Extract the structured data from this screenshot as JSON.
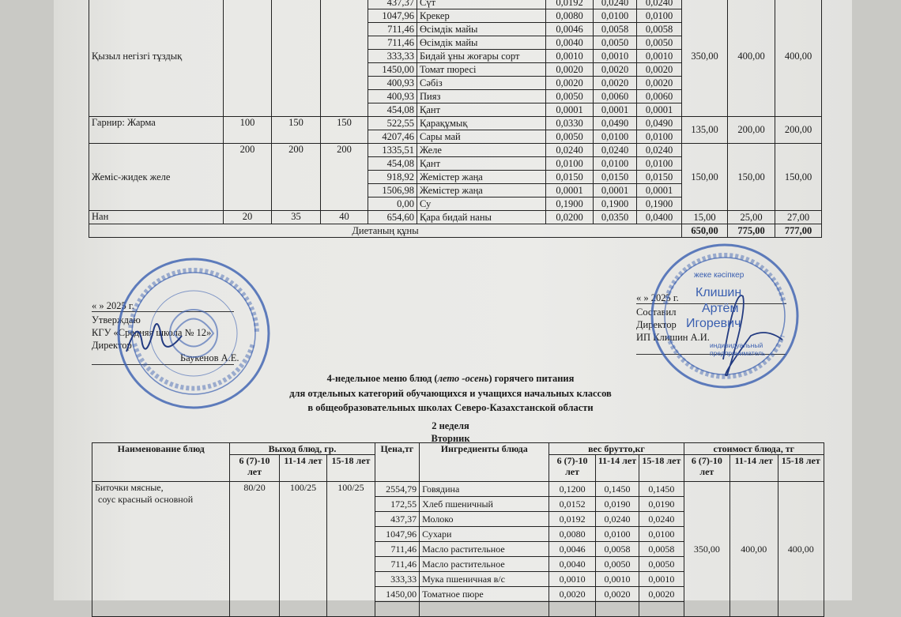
{
  "top_table": {
    "groups": [
      {
        "name": "Қызыл негізгі тұздық",
        "yields": [
          "",
          "",
          ""
        ],
        "costs": [
          "350,00",
          "400,00",
          "400,00"
        ],
        "items": [
          {
            "price": "437,37",
            "ingredient": "Сүт",
            "weights": [
              "0,0192",
              "0,0240",
              "0,0240"
            ]
          },
          {
            "price": "1047,96",
            "ingredient": "Крекер",
            "weights": [
              "0,0080",
              "0,0100",
              "0,0100"
            ]
          },
          {
            "price": "711,46",
            "ingredient": "Өсімдік майы",
            "weights": [
              "0,0046",
              "0,0058",
              "0,0058"
            ]
          },
          {
            "price": "711,46",
            "ingredient": "Өсімдік майы",
            "weights": [
              "0,0040",
              "0,0050",
              "0,0050"
            ]
          },
          {
            "price": "333,33",
            "ingredient": "Бидай ұны жоғары сорт",
            "weights": [
              "0,0010",
              "0,0010",
              "0,0010"
            ]
          },
          {
            "price": "1450,00",
            "ingredient": "Томат пюресі",
            "weights": [
              "0,0020",
              "0,0020",
              "0,0020"
            ]
          },
          {
            "price": "400,93",
            "ingredient": "Сәбіз",
            "weights": [
              "0,0020",
              "0,0020",
              "0,0020"
            ]
          },
          {
            "price": "400,93",
            "ingredient": "Пияз",
            "weights": [
              "0,0050",
              "0,0060",
              "0,0060"
            ]
          },
          {
            "price": "454,08",
            "ingredient": "Қант",
            "weights": [
              "0,0001",
              "0,0001",
              "0,0001"
            ]
          }
        ]
      },
      {
        "name": "Гарнир: Жарма",
        "yields": [
          "100",
          "150",
          "150"
        ],
        "costs": [
          "135,00",
          "200,00",
          "200,00"
        ],
        "items": [
          {
            "price": "522,55",
            "ingredient": "Қарақұмық",
            "weights": [
              "0,0330",
              "0,0490",
              "0,0490"
            ]
          },
          {
            "price": "4207,46",
            "ingredient": "Сары май",
            "weights": [
              "0,0050",
              "0,0100",
              "0,0100"
            ]
          }
        ]
      },
      {
        "name": "Жеміс-жидек желе",
        "yields": [
          "200",
          "200",
          "200"
        ],
        "costs": [
          "150,00",
          "150,00",
          "150,00"
        ],
        "items": [
          {
            "price": "1335,51",
            "ingredient": "Желе",
            "weights": [
              "0,0240",
              "0,0240",
              "0,0240"
            ]
          },
          {
            "price": "454,08",
            "ingredient": "Қант",
            "weights": [
              "0,0100",
              "0,0100",
              "0,0100"
            ]
          },
          {
            "price": "918,92",
            "ingredient": "Жемістер жаңа",
            "weights": [
              "0,0150",
              "0,0150",
              "0,0150"
            ]
          },
          {
            "price": "1506,98",
            "ingredient": "Жемістер жаңа",
            "weights": [
              "0,0001",
              "0,0001",
              "0,0001"
            ]
          },
          {
            "price": "0,00",
            "ingredient": "Су",
            "weights": [
              "0,1900",
              "0,1900",
              "0,1900"
            ]
          }
        ]
      },
      {
        "name": "Нан",
        "yields": [
          "20",
          "35",
          "40"
        ],
        "costs": [
          "15,00",
          "25,00",
          "27,00"
        ],
        "items": [
          {
            "price": "654,60",
            "ingredient": "Қара бидай наны",
            "weights": [
              "0,0200",
              "0,0350",
              "0,0400"
            ]
          }
        ]
      }
    ],
    "total_label": "Диетаның құны",
    "totals": [
      "650,00",
      "775,00",
      "777,00"
    ]
  },
  "approval_left": {
    "date": "«      »                    2025 г.",
    "line1": "Утверждаю",
    "line2": "КГУ «Средняя школа № 12»",
    "line3": "Директор",
    "signer": "Баукенов А.Е."
  },
  "approval_right": {
    "date": "«      »                    2025 г.",
    "line1": "Составил",
    "line2": "Директор",
    "line3": "ИП Клишин А.И."
  },
  "stamp_right": {
    "top": "жеке кәсіпкер",
    "name1": "Клишин",
    "name2": "Артём",
    "name3": "Игоревич",
    "sub": "индивидуальный предприниматель"
  },
  "heading": {
    "line1_pre": "4-недельное меню блюд (",
    "line1_em": "лето -осень",
    "line1_post": ") горячего питания",
    "line2": "для отдельных категорий обучающихся и учащихся начальных классов",
    "line3": "в общеобразовательных школах Северо-Казахстанской области",
    "week": "2 неделя",
    "day": "Вторник"
  },
  "bottom_table": {
    "headers": {
      "name": "Наименование блюд",
      "yield": "Выход блюд, гр.",
      "price": "Цена,тг",
      "ingredients": "Ингредиенты блюда",
      "weight": "вес брутто,кг",
      "cost": "стоимост блюда, тг",
      "age1": "6 (7)-10 лет",
      "age2": "11-14 лет",
      "age3": "15-18 лет"
    },
    "dish": {
      "name_line1": "Биточки  мясные,",
      "name_line2": "соус красный основной",
      "yields": [
        "80/20",
        "100/25",
        "100/25"
      ],
      "costs": [
        "350,00",
        "400,00",
        "400,00"
      ],
      "items": [
        {
          "price": "2554,79",
          "ingredient": "Говядина",
          "weights": [
            "0,1200",
            "0,1450",
            "0,1450"
          ]
        },
        {
          "price": "172,55",
          "ingredient": "Хлеб пшеничный",
          "weights": [
            "0,0152",
            "0,0190",
            "0,0190"
          ]
        },
        {
          "price": "437,37",
          "ingredient": "Молоко",
          "weights": [
            "0,0192",
            "0,0240",
            "0,0240"
          ]
        },
        {
          "price": "1047,96",
          "ingredient": "Сухари",
          "weights": [
            "0,0080",
            "0,0100",
            "0,0100"
          ]
        },
        {
          "price": "711,46",
          "ingredient": "Масло растительное",
          "weights": [
            "0,0046",
            "0,0058",
            "0,0058"
          ]
        },
        {
          "price": "711,46",
          "ingredient": "Масло растительное",
          "weights": [
            "0,0040",
            "0,0050",
            "0,0050"
          ]
        },
        {
          "price": "333,33",
          "ingredient": "Мука пшеничная в/с",
          "weights": [
            "0,0010",
            "0,0010",
            "0,0010"
          ]
        },
        {
          "price": "1450,00",
          "ingredient": "Томатное пюре",
          "weights": [
            "0,0020",
            "0,0020",
            "0,0020"
          ]
        }
      ]
    }
  },
  "colors": {
    "stamp": "#3a5fb0",
    "ink": "#1a1a1a",
    "paper": "#e9e9e6"
  }
}
